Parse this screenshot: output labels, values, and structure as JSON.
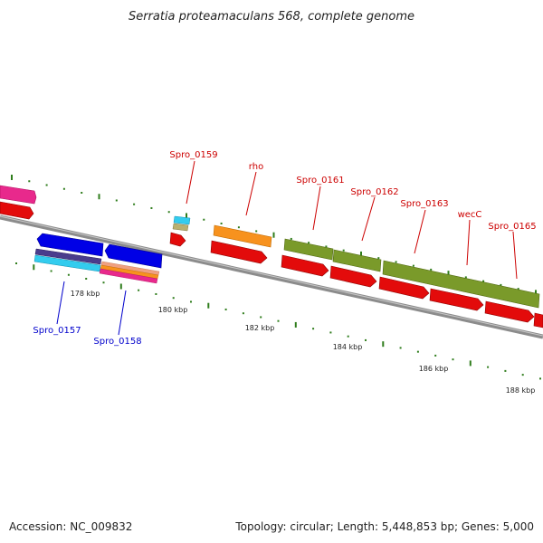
{
  "title": "Serratia proteamaculans 568, complete genome",
  "footer": {
    "accession": "Accession: NC_009832",
    "summary": "Topology: circular; Length: 5,448,853 bp; Genes: 5,000"
  },
  "colors": {
    "backbone": "#8c8c8c",
    "tick": "#2f7d1c",
    "forward_label": "#cc0000",
    "reverse_label": "#0000cc"
  },
  "scale_labels": [
    "178 kbp",
    "180 kbp",
    "182 kbp",
    "184 kbp",
    "186 kbp",
    "188 kbp"
  ],
  "gene_labels": {
    "spro_0159": "Spro_0159",
    "rho": "rho",
    "spro_0161": "Spro_0161",
    "spro_0162": "Spro_0162",
    "spro_0163": "Spro_0163",
    "wecc": "wecC",
    "spro_0165": "Spro_0165",
    "spro_0157": "Spro_0157",
    "spro_0158": "Spro_0158"
  }
}
